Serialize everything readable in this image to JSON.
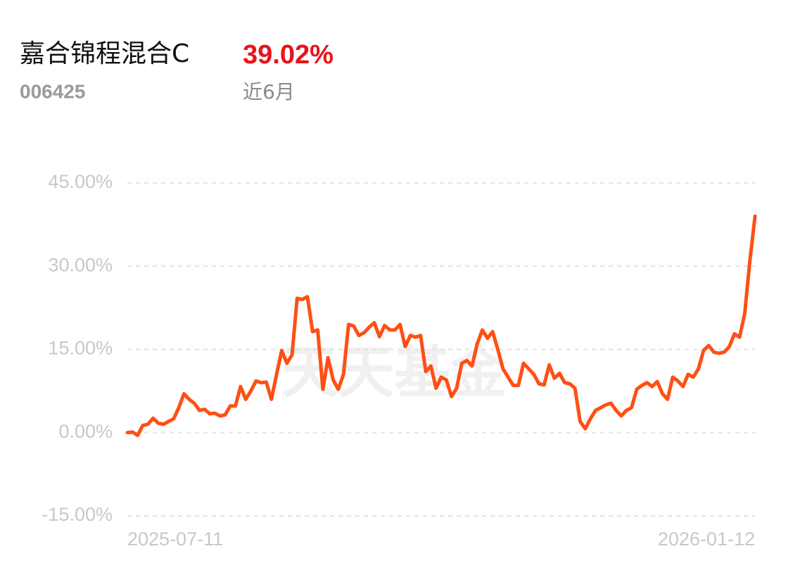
{
  "header": {
    "title": "嘉合锦程混合C",
    "return": "39.02%",
    "code": "006425",
    "period": "近6月"
  },
  "watermark": "天天基金",
  "chart_data": {
    "type": "line",
    "categories": [
      "2025-07-11",
      null,
      null,
      null,
      null,
      null,
      null,
      null,
      null,
      null,
      null,
      null,
      null,
      null,
      null,
      null,
      null,
      null,
      null,
      null,
      null,
      null,
      null,
      null,
      null,
      null,
      null,
      null,
      null,
      null,
      null,
      null,
      null,
      null,
      null,
      null,
      null,
      null,
      null,
      null,
      null,
      null,
      null,
      null,
      null,
      null,
      null,
      null,
      null,
      null,
      null,
      null,
      null,
      null,
      null,
      null,
      null,
      null,
      null,
      null,
      null,
      null,
      null,
      null,
      null,
      null,
      null,
      null,
      null,
      null,
      null,
      null,
      null,
      null,
      null,
      null,
      null,
      null,
      null,
      null,
      null,
      null,
      null,
      null,
      null,
      null,
      null,
      null,
      null,
      null,
      null,
      null,
      null,
      null,
      null,
      null,
      null,
      null,
      null,
      null,
      null,
      null,
      null,
      null,
      null,
      null,
      null,
      null,
      null,
      null,
      null,
      null,
      null,
      null,
      null,
      null,
      null,
      null,
      null,
      null,
      null,
      null,
      "2026-01-12"
    ],
    "series": [
      {
        "color": "#ff4f14",
        "values": [
          0,
          0.1,
          -0.5,
          1.3,
          1.5,
          2.6,
          1.7,
          1.5,
          2.0,
          2.5,
          4.5,
          7.0,
          6.0,
          5.3,
          4.0,
          4.2,
          3.4,
          3.5,
          3.0,
          3.2,
          4.8,
          4.8,
          8.3,
          6.0,
          7.5,
          9.3,
          9.0,
          9.1,
          6.0,
          10.5,
          14.8,
          12.5,
          14.0,
          24.2,
          24.0,
          24.5,
          18.2,
          18.5,
          7.8,
          13.5,
          9.5,
          7.8,
          10.5,
          19.5,
          19.2,
          17.5,
          18.0,
          19.0,
          19.8,
          17.3,
          19.3,
          18.5,
          18.5,
          19.5,
          15.5,
          17.5,
          17.2,
          17.5,
          11.0,
          12.0,
          8.0,
          10.0,
          9.5,
          6.5,
          8.0,
          12.5,
          13.0,
          12.0,
          16.0,
          18.5,
          17.0,
          18.2,
          15.0,
          11.5,
          10.0,
          8.5,
          8.5,
          12.5,
          11.5,
          10.5,
          8.8,
          8.6,
          12.2,
          9.8,
          10.7,
          9.0,
          8.8,
          8.0,
          2.0,
          0.7,
          2.5,
          4.0,
          4.5,
          5.0,
          5.3,
          4.0,
          3.0,
          4.0,
          4.5,
          7.8,
          8.5,
          9.0,
          8.3,
          9.2,
          7.0,
          6.0,
          10.0,
          9.3,
          8.3,
          10.5,
          10.0,
          11.5,
          14.8,
          15.7,
          14.5,
          14.3,
          14.5,
          15.5,
          17.8,
          17.2,
          21.5,
          31.0,
          39.02
        ]
      }
    ],
    "ylim": [
      -15,
      45
    ],
    "yticks": [
      {
        "value": -15,
        "label": "-15.00%"
      },
      {
        "value": 0,
        "label": "0.00%"
      },
      {
        "value": 15,
        "label": "15.00%"
      },
      {
        "value": 30,
        "label": "30.00%"
      },
      {
        "value": 45,
        "label": "45.00%"
      }
    ],
    "grid": true
  }
}
